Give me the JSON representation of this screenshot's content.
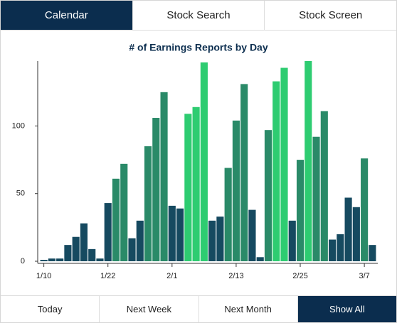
{
  "tabs": [
    "Calendar",
    "Stock Search",
    "Stock Screen"
  ],
  "chart_data": {
    "type": "bar",
    "title": "# of Earnings Reports by Day",
    "categories": [
      "1/10",
      null,
      null,
      null,
      null,
      null,
      null,
      null,
      "1/22",
      null,
      null,
      null,
      null,
      null,
      null,
      null,
      "2/1",
      null,
      null,
      null,
      null,
      null,
      null,
      null,
      "2/13",
      null,
      null,
      null,
      null,
      null,
      null,
      null,
      "2/25",
      null,
      null,
      null,
      null,
      null,
      null,
      null,
      "3/7",
      null
    ],
    "values": [
      1,
      2,
      2,
      12,
      18,
      28,
      9,
      2,
      43,
      61,
      72,
      17,
      30,
      85,
      106,
      125,
      41,
      39,
      109,
      114,
      147,
      30,
      33,
      69,
      104,
      131,
      38,
      3,
      97,
      133,
      143,
      30,
      75,
      148,
      92,
      111,
      16,
      20,
      47,
      40,
      76,
      12
    ],
    "colors": [
      "#164a60",
      "#164a60",
      "#164a60",
      "#164a60",
      "#164a60",
      "#164a60",
      "#164a60",
      "#164a60",
      "#164a60",
      "#2a8a68",
      "#2a8a68",
      "#164a60",
      "#164a60",
      "#2a8a68",
      "#2a8a68",
      "#2a8a68",
      "#164a60",
      "#164a60",
      "#2ecc71",
      "#2ecc71",
      "#2ecc71",
      "#164a60",
      "#164a60",
      "#2a8a68",
      "#2a8a68",
      "#2a8a68",
      "#164a60",
      "#164a60",
      "#2a8a68",
      "#2ecc71",
      "#2ecc71",
      "#164a60",
      "#2a8a68",
      "#2ecc71",
      "#2a8a68",
      "#2a8a68",
      "#164a60",
      "#164a60",
      "#164a60",
      "#164a60",
      "#2a8a68",
      "#164a60"
    ],
    "ylim": [
      0,
      148
    ],
    "yticks": [
      0,
      50,
      100
    ],
    "grid": false
  },
  "buttons": [
    "Today",
    "Next Week",
    "Next Month",
    "Show All"
  ]
}
